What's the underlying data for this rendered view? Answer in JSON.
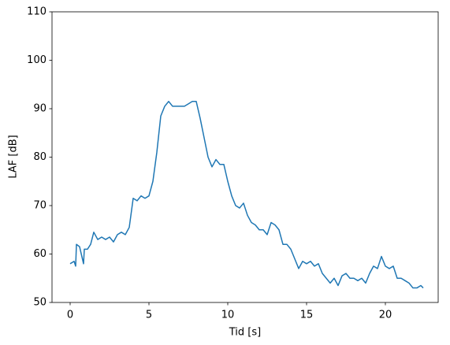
{
  "chart_data": {
    "type": "line",
    "xlabel": "Tid [s]",
    "ylabel": "LAF [dB]",
    "xlim": [
      -1.15,
      23.35
    ],
    "ylim": [
      50,
      110
    ],
    "xticks": [
      0,
      5,
      10,
      15,
      20
    ],
    "yticks": [
      50,
      60,
      70,
      80,
      90,
      100,
      110
    ],
    "grid": false,
    "x": [
      0,
      0.25,
      0.35,
      0.4,
      0.6,
      0.85,
      0.9,
      1.1,
      1.3,
      1.5,
      1.75,
      2.0,
      2.25,
      2.5,
      2.75,
      3.0,
      3.25,
      3.5,
      3.75,
      4.0,
      4.25,
      4.5,
      4.75,
      5.0,
      5.25,
      5.5,
      5.75,
      6.0,
      6.25,
      6.5,
      6.75,
      7.0,
      7.25,
      7.5,
      7.75,
      8.0,
      8.25,
      8.5,
      8.75,
      9.0,
      9.25,
      9.5,
      9.75,
      10.0,
      10.25,
      10.5,
      10.75,
      11.0,
      11.25,
      11.5,
      11.75,
      12.0,
      12.25,
      12.5,
      12.75,
      13.0,
      13.25,
      13.5,
      13.75,
      14.0,
      14.25,
      14.5,
      14.75,
      15.0,
      15.25,
      15.5,
      15.75,
      16.0,
      16.25,
      16.5,
      16.75,
      17.0,
      17.25,
      17.5,
      17.75,
      18.0,
      18.25,
      18.5,
      18.75,
      19.0,
      19.25,
      19.5,
      19.75,
      20.0,
      20.25,
      20.5,
      20.75,
      21.0,
      21.25,
      21.5,
      21.75,
      22.0,
      22.25,
      22.4
    ],
    "series": [
      {
        "color": "#1f77b4",
        "values": [
          58,
          58.5,
          57.5,
          62,
          61.5,
          58,
          61,
          61,
          62,
          64.5,
          63,
          63.5,
          63,
          63.5,
          62.5,
          64,
          64.5,
          64,
          65.5,
          71.5,
          71,
          72,
          71.5,
          72,
          75,
          81,
          88.5,
          90.5,
          91.5,
          90.5,
          90.5,
          90.5,
          90.5,
          91,
          91.5,
          91.5,
          88,
          84,
          80,
          78,
          79.5,
          78.5,
          78.5,
          75,
          72,
          70,
          69.5,
          70.5,
          68,
          66.5,
          66,
          65,
          65,
          64,
          66.5,
          66,
          65,
          62,
          62,
          61,
          59,
          57,
          58.5,
          58,
          58.5,
          57.5,
          58,
          56,
          55,
          54,
          55,
          53.5,
          55.5,
          56,
          55,
          55,
          54.5,
          55,
          54,
          56,
          57.5,
          57,
          59.5,
          57.5,
          57,
          57.5,
          55,
          55,
          54.5,
          54,
          53,
          53,
          53.5,
          53
        ]
      }
    ]
  }
}
